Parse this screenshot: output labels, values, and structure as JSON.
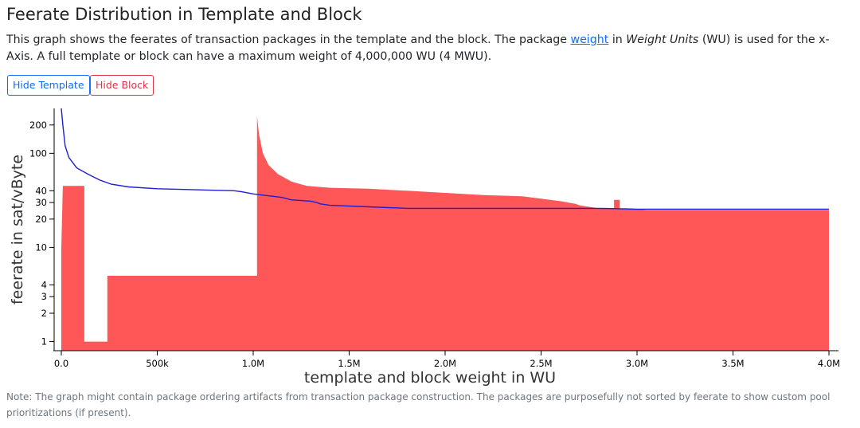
{
  "title": "Feerate Distribution in Template and Block",
  "description": {
    "part1": "This graph shows the feerates of transaction packages in the template and the block. The package ",
    "link": "weight",
    "part2": " in ",
    "em": "Weight Units",
    "part3": " (WU) is used for the x-Axis. A full template or block can have a maximum weight of 4,000,000 WU (4 MWU)."
  },
  "buttons": {
    "hide_template": "Hide Template",
    "hide_block": "Hide Block"
  },
  "note": "Note: The graph might contain package ordering artifacts from transaction package construction. The packages are purposefully not sorted by feerate to show custom pool prioritizations (if present).",
  "colors": {
    "block": "#ff5757",
    "template": "#1e1ed2",
    "axis": "#000000"
  },
  "chart_data": {
    "type": "area",
    "title": "",
    "xlabel": "template and block weight in WU",
    "ylabel": "feerate in sat/vByte",
    "xlim": [
      0,
      4000000
    ],
    "ylim": [
      0.8,
      300
    ],
    "yscale": "log",
    "x_ticks": [
      0,
      500000,
      1000000,
      1500000,
      2000000,
      2500000,
      3000000,
      3500000,
      4000000
    ],
    "x_tick_labels": [
      "0.0",
      "500k",
      "1.0M",
      "1.5M",
      "2.0M",
      "2.5M",
      "3.0M",
      "3.5M",
      "4.0M"
    ],
    "y_ticks": [
      1,
      2,
      3,
      4,
      10,
      20,
      30,
      40,
      100,
      200
    ],
    "y_tick_labels": [
      "1",
      "2",
      "3",
      "4",
      "10",
      "20",
      "30",
      "40",
      "100",
      "200"
    ],
    "series": [
      {
        "name": "Block",
        "style": "filled-step",
        "points": [
          [
            0,
            10
          ],
          [
            8000,
            45
          ],
          [
            120000,
            45
          ],
          [
            120000,
            1
          ],
          [
            240000,
            1
          ],
          [
            240000,
            5
          ],
          [
            1020000,
            5
          ],
          [
            1020000,
            250
          ],
          [
            1030000,
            160
          ],
          [
            1050000,
            100
          ],
          [
            1080000,
            75
          ],
          [
            1130000,
            60
          ],
          [
            1200000,
            50
          ],
          [
            1280000,
            45
          ],
          [
            1400000,
            43
          ],
          [
            1600000,
            42
          ],
          [
            1800000,
            40
          ],
          [
            2000000,
            38
          ],
          [
            2200000,
            36
          ],
          [
            2400000,
            35
          ],
          [
            2500000,
            33
          ],
          [
            2600000,
            31
          ],
          [
            2680000,
            29
          ],
          [
            2700000,
            28
          ],
          [
            2800000,
            26
          ],
          [
            2880000,
            26
          ],
          [
            2880000,
            32
          ],
          [
            2910000,
            32
          ],
          [
            2910000,
            26
          ],
          [
            2960000,
            26
          ],
          [
            3050000,
            25
          ],
          [
            4000000,
            25
          ]
        ]
      },
      {
        "name": "Template",
        "style": "line",
        "points": [
          [
            0,
            300
          ],
          [
            8000,
            200
          ],
          [
            20000,
            120
          ],
          [
            40000,
            90
          ],
          [
            80000,
            70
          ],
          [
            140000,
            60
          ],
          [
            200000,
            52
          ],
          [
            260000,
            47
          ],
          [
            350000,
            44
          ],
          [
            500000,
            42
          ],
          [
            700000,
            41
          ],
          [
            900000,
            40
          ],
          [
            940000,
            39
          ],
          [
            1000000,
            37
          ],
          [
            1050000,
            36
          ],
          [
            1100000,
            35
          ],
          [
            1150000,
            34
          ],
          [
            1200000,
            32
          ],
          [
            1300000,
            31
          ],
          [
            1330000,
            30
          ],
          [
            1350000,
            29
          ],
          [
            1400000,
            28
          ],
          [
            1600000,
            27
          ],
          [
            1800000,
            26
          ],
          [
            2200000,
            26
          ],
          [
            2800000,
            26
          ],
          [
            3000000,
            25.5
          ],
          [
            4000000,
            25.5
          ]
        ]
      }
    ]
  }
}
